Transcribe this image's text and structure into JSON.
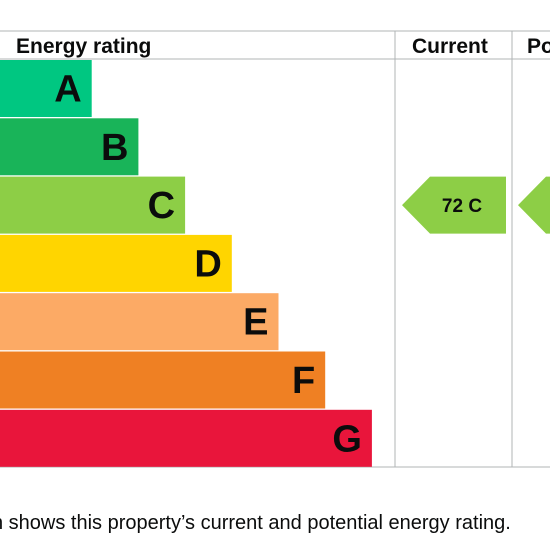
{
  "chart_data": {
    "type": "bar",
    "columns": {
      "rating": "Energy rating",
      "current": "Current",
      "potential": "Po"
    },
    "bands": [
      {
        "letter": "A",
        "rank": 1,
        "color": "#00c781"
      },
      {
        "letter": "B",
        "rank": 2,
        "color": "#19b459"
      },
      {
        "letter": "C",
        "rank": 3,
        "color": "#8dce46"
      },
      {
        "letter": "D",
        "rank": 4,
        "color": "#ffd500"
      },
      {
        "letter": "E",
        "rank": 5,
        "color": "#fcaa65"
      },
      {
        "letter": "F",
        "rank": 6,
        "color": "#ef8023"
      },
      {
        "letter": "G",
        "rank": 7,
        "color": "#e9153b"
      }
    ],
    "current": {
      "score": 72,
      "band": "C",
      "label": "72  C",
      "color": "#8dce46"
    },
    "potential": {
      "band": "C",
      "color": "#8dce46"
    }
  },
  "caption": "h shows this property’s current and potential energy rating."
}
